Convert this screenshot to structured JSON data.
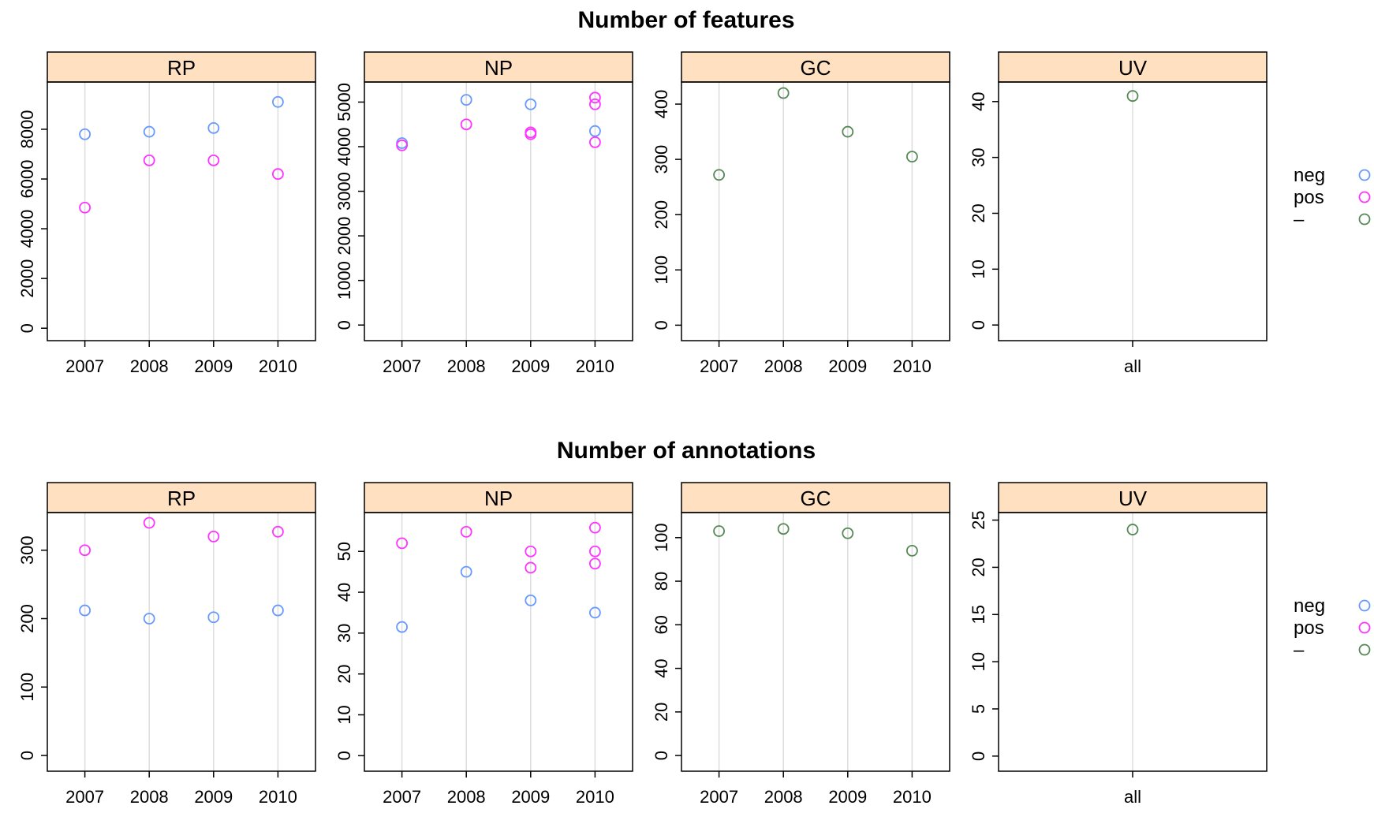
{
  "figure": {
    "colors": {
      "neg": "#6699ff",
      "pos": "#ff33ff",
      "dash": "#558855",
      "strip": "#ffe0c0",
      "grid": "#dddddd"
    }
  },
  "chart_data": [
    {
      "type": "scatter",
      "title": "Number of features",
      "legend": {
        "position": "right",
        "entries": [
          "neg",
          "pos",
          "–"
        ]
      },
      "panels": [
        {
          "label": "RP",
          "categories": [
            "2007",
            "2008",
            "2009",
            "2010"
          ],
          "ylim": [
            -500,
            9900
          ],
          "yticks": [
            0,
            2000,
            4000,
            6000,
            8000
          ],
          "series": [
            {
              "name": "neg",
              "values": [
                [
                  7800
                ],
                [
                  7900
                ],
                [
                  8050
                ],
                [
                  9100
                ]
              ]
            },
            {
              "name": "pos",
              "values": [
                [
                  4850
                ],
                [
                  6750
                ],
                [
                  6750
                ],
                [
                  6200
                ]
              ]
            }
          ]
        },
        {
          "label": "NP",
          "categories": [
            "2007",
            "2008",
            "2009",
            "2010"
          ],
          "ylim": [
            -350,
            5450
          ],
          "yticks": [
            0,
            1000,
            2000,
            3000,
            4000,
            5000
          ],
          "series": [
            {
              "name": "neg",
              "values": [
                [
                  4080
                ],
                [
                  5050
                ],
                [
                  4950
                ],
                [
                  4350
                ]
              ]
            },
            {
              "name": "pos",
              "values": [
                [
                  4030
                ],
                [
                  4500
                ],
                [
                  4320,
                  4280
                ],
                [
                  5100,
                  4950,
                  4100
                ]
              ]
            }
          ]
        },
        {
          "label": "GC",
          "categories": [
            "2007",
            "2008",
            "2009",
            "2010"
          ],
          "ylim": [
            -28,
            440
          ],
          "yticks": [
            0,
            100,
            200,
            300,
            400
          ],
          "series": [
            {
              "name": "–",
              "values": [
                [
                  272
                ],
                [
                  420
                ],
                [
                  350
                ],
                [
                  305
                ]
              ]
            }
          ]
        },
        {
          "label": "UV",
          "categories": [
            "all"
          ],
          "ylim": [
            -2.8,
            43.5
          ],
          "yticks": [
            0,
            10,
            20,
            30,
            40
          ],
          "series": [
            {
              "name": "–",
              "values": [
                [
                  41
                ]
              ]
            }
          ]
        }
      ]
    },
    {
      "type": "scatter",
      "title": "Number of annotations",
      "legend": {
        "position": "right",
        "entries": [
          "neg",
          "pos",
          "–"
        ]
      },
      "panels": [
        {
          "label": "RP",
          "categories": [
            "2007",
            "2008",
            "2009",
            "2010"
          ],
          "ylim": [
            -23,
            355
          ],
          "yticks": [
            0,
            100,
            200,
            300
          ],
          "series": [
            {
              "name": "neg",
              "values": [
                [
                  212
                ],
                [
                  200
                ],
                [
                  202
                ],
                [
                  212
                ]
              ]
            },
            {
              "name": "pos",
              "values": [
                [
                  300
                ],
                [
                  340
                ],
                [
                  320
                ],
                [
                  327
                ]
              ]
            }
          ]
        },
        {
          "label": "NP",
          "categories": [
            "2007",
            "2008",
            "2009",
            "2010"
          ],
          "ylim": [
            -3.8,
            59.5
          ],
          "yticks": [
            0,
            10,
            20,
            30,
            40,
            50
          ],
          "series": [
            {
              "name": "neg",
              "values": [
                [
                  31.5
                ],
                [
                  45
                ],
                [
                  38
                ],
                [
                  35
                ]
              ]
            },
            {
              "name": "pos",
              "values": [
                [
                  52
                ],
                [
                  54.8
                ],
                [
                  50,
                  46
                ],
                [
                  55.8,
                  50,
                  47
                ]
              ]
            }
          ]
        },
        {
          "label": "GC",
          "categories": [
            "2007",
            "2008",
            "2009",
            "2010"
          ],
          "ylim": [
            -7.2,
            111.5
          ],
          "yticks": [
            0,
            20,
            40,
            60,
            80,
            100
          ],
          "series": [
            {
              "name": "–",
              "values": [
                [
                  103
                ],
                [
                  104
                ],
                [
                  102
                ],
                [
                  94
                ]
              ]
            }
          ]
        },
        {
          "label": "UV",
          "categories": [
            "all"
          ],
          "ylim": [
            -1.6,
            25.8
          ],
          "yticks": [
            0,
            5,
            10,
            15,
            20,
            25
          ],
          "series": [
            {
              "name": "–",
              "values": [
                [
                  24
                ]
              ]
            }
          ]
        }
      ]
    }
  ]
}
